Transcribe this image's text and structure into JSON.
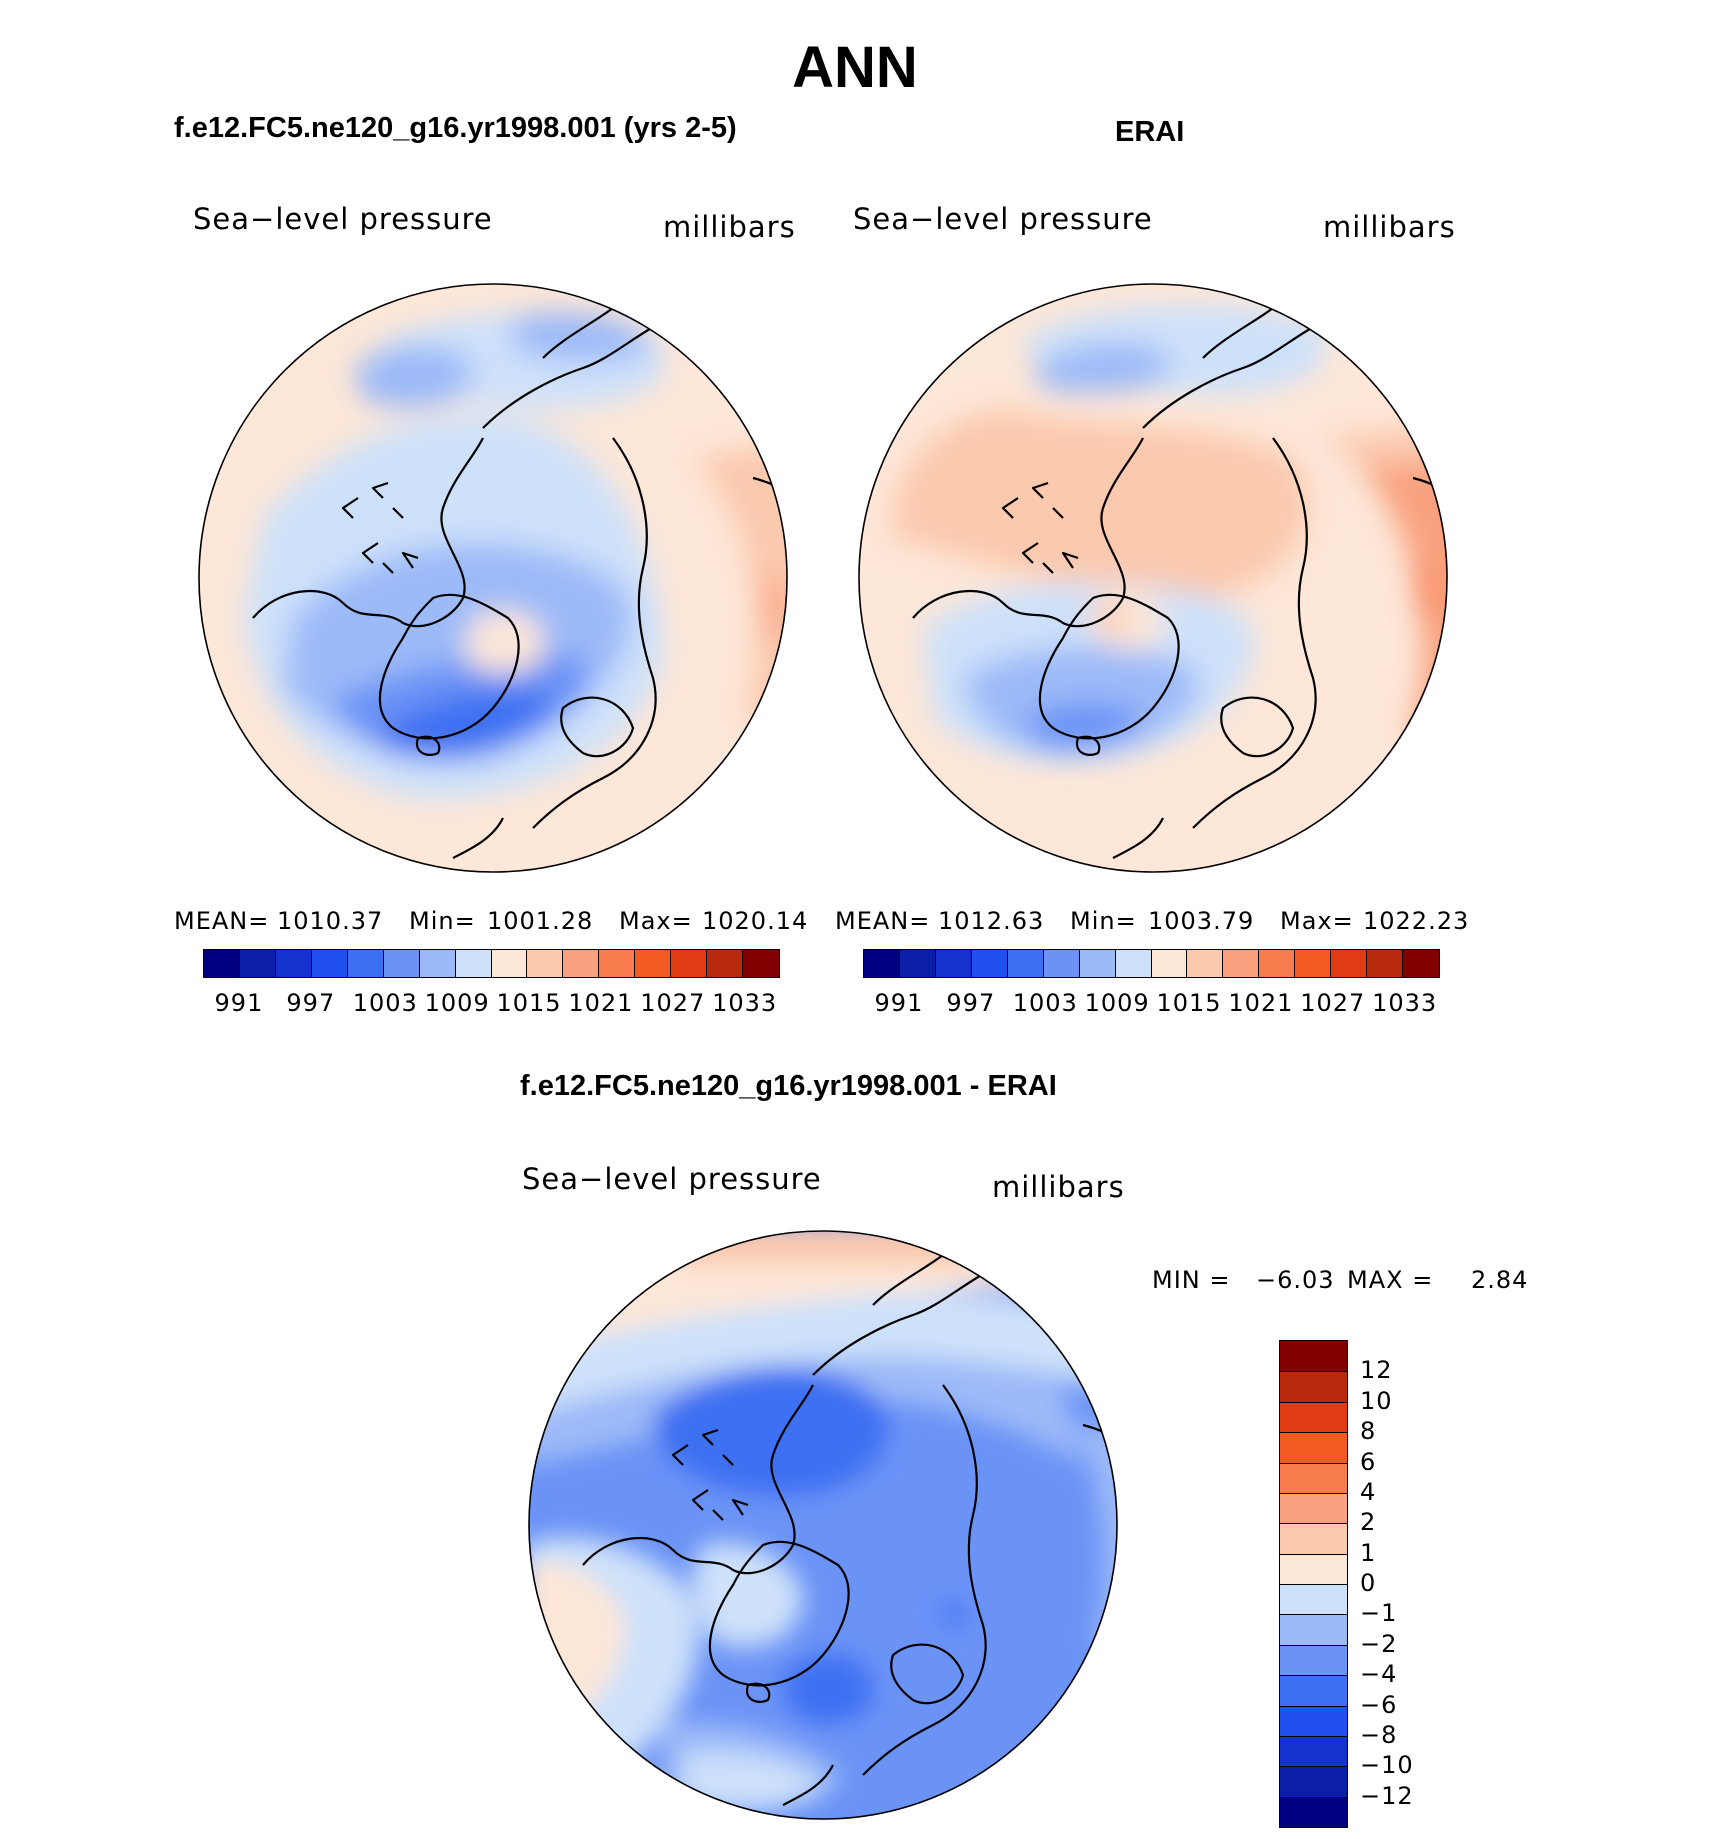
{
  "main_title": "ANN",
  "panels": [
    {
      "title": "f.e12.FC5.ne120_g16.yr1998.001 (yrs 2-5)",
      "variable": "Sea−level pressure",
      "units": "millibars",
      "stats": {
        "mean_label": "MEAN=",
        "mean": "1010.37",
        "min_label": "Min=",
        "min": "1001.28",
        "max_label": "Max=",
        "max": "1020.14"
      }
    },
    {
      "title": "ERAI",
      "variable": "Sea−level pressure",
      "units": "millibars",
      "stats": {
        "mean_label": "MEAN=",
        "mean": "1012.63",
        "min_label": "Min=",
        "min": "1003.79",
        "max_label": "Max=",
        "max": "1022.23"
      }
    },
    {
      "title": "f.e12.FC5.ne120_g16.yr1998.001 - ERAI",
      "variable": "Sea−level pressure",
      "units": "millibars",
      "stats": {
        "min_label": "MIN =",
        "min": "−6.03",
        "max_label": "MAX =",
        "max": "2.84"
      }
    }
  ],
  "chart_data": [
    {
      "type": "heatmap",
      "title": "f.e12.FC5.ne120_g16.yr1998.001 (yrs 2-5)",
      "projection": "north polar stereographic",
      "variable": "Sea-level pressure",
      "units": "millibars",
      "mean": 1010.37,
      "min": 1001.28,
      "max": 1020.14,
      "colorbar": {
        "orientation": "horizontal",
        "levels": [
          991,
          994,
          997,
          1000,
          1003,
          1006,
          1009,
          1012,
          1015,
          1018,
          1021,
          1024,
          1027,
          1030,
          1033
        ],
        "tick_labels": [
          "991",
          "997",
          "1003",
          "1009",
          "1015",
          "1021",
          "1027",
          "1033"
        ]
      }
    },
    {
      "type": "heatmap",
      "title": "ERAI",
      "projection": "north polar stereographic",
      "variable": "Sea-level pressure",
      "units": "millibars",
      "mean": 1012.63,
      "min": 1003.79,
      "max": 1022.23,
      "colorbar": {
        "orientation": "horizontal",
        "levels": [
          991,
          994,
          997,
          1000,
          1003,
          1006,
          1009,
          1012,
          1015,
          1018,
          1021,
          1024,
          1027,
          1030,
          1033
        ],
        "tick_labels": [
          "991",
          "997",
          "1003",
          "1009",
          "1015",
          "1021",
          "1027",
          "1033"
        ]
      }
    },
    {
      "type": "heatmap",
      "title": "f.e12.FC5.ne120_g16.yr1998.001 - ERAI",
      "projection": "north polar stereographic",
      "variable": "Sea-level pressure",
      "units": "millibars",
      "min": -6.03,
      "max": 2.84,
      "colorbar": {
        "orientation": "vertical",
        "levels": [
          -12,
          -10,
          -8,
          -6,
          -4,
          -2,
          -1,
          0,
          1,
          2,
          4,
          6,
          8,
          10,
          12
        ],
        "tick_labels": [
          "−12",
          "−10",
          "−8",
          "−6",
          "−4",
          "−2",
          "−1",
          "0",
          "1",
          "2",
          "4",
          "6",
          "8",
          "10",
          "12"
        ]
      }
    }
  ],
  "palette": [
    "#000080",
    "#0a1ea8",
    "#1432d0",
    "#2050ee",
    "#3d6ff2",
    "#6b93f6",
    "#9cbaf8",
    "#cde1fa",
    "#fde7d8",
    "#fbc9ae",
    "#f9a17e",
    "#f87c4e",
    "#f45a24",
    "#e03c14",
    "#b82a0c",
    "#820000"
  ]
}
